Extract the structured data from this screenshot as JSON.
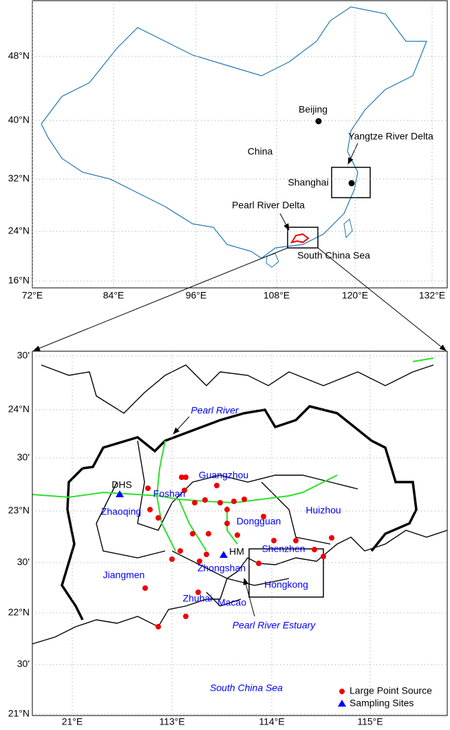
{
  "overview_map": {
    "lat_labels": [
      "48°N",
      "40°N",
      "32°N",
      "24°N",
      "16°N"
    ],
    "lon_labels": [
      "72°E",
      "84°E",
      "96°E",
      "108°E",
      "120°E",
      "132°E"
    ],
    "places": [
      "Beijing",
      "China",
      "Yangtze River Delta",
      "Shanghai",
      "Pearl River Delta",
      "South China Sea"
    ]
  },
  "detail_map": {
    "lat_labels": [
      "30'",
      "24°N",
      "30'",
      "23°N",
      "30'",
      "22°N",
      "30'",
      "21°N"
    ],
    "lon_labels": [
      "21°E",
      "113°E",
      "114°E",
      "115°E"
    ],
    "places": [
      "Pearl River",
      "Guangzhou",
      "DHS",
      "Foshan",
      "Zhaoqing",
      "Dongguan",
      "Huizhou",
      "HM",
      "Shenzhen",
      "Jiangmen",
      "Zhongshan",
      "Hongkong",
      "Zhuhai",
      "Macao",
      "Pearl River Estuary",
      "South China Sea"
    ],
    "legend": [
      "Large Point Source",
      "Sampling Sites"
    ]
  }
}
